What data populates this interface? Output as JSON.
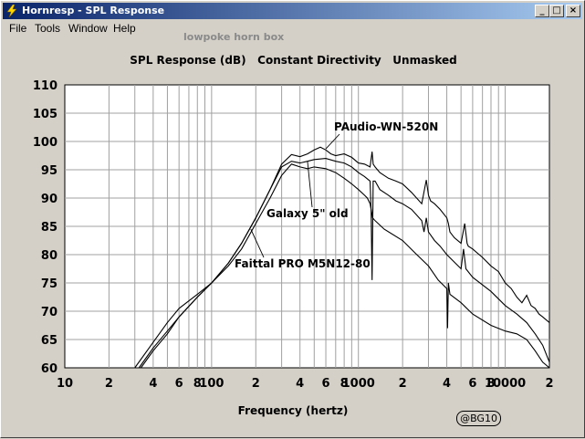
{
  "window": {
    "title": "Hornresp - SPL Response",
    "controls": {
      "minimize": "_",
      "maximize": "□",
      "close": "×"
    }
  },
  "menu": [
    "File",
    "Tools",
    "Window",
    "Help"
  ],
  "watermark": "lowpoke horn box",
  "chart_title": "SPL Response (dB)   Constant Directivity   Unmasked",
  "badge": "@BG10",
  "colors": {
    "titlebar_start": "#0a246a",
    "titlebar_end": "#a6caf0",
    "plot_bg": "#ffffff",
    "grid": "#a0a0a0",
    "curve": "#000000"
  },
  "chart_data": {
    "type": "line",
    "xscale": "log",
    "xlabel": "Frequency (hertz)",
    "ylabel": "SPL Response (dB)",
    "xlim": [
      10,
      20000
    ],
    "ylim": [
      60,
      110
    ],
    "grid": true,
    "x_ticks": [
      {
        "v": 10,
        "label": "10"
      },
      {
        "v": 20,
        "label": "2"
      },
      {
        "v": 40,
        "label": "4"
      },
      {
        "v": 60,
        "label": "6"
      },
      {
        "v": 80,
        "label": "8"
      },
      {
        "v": 100,
        "label": "100"
      },
      {
        "v": 200,
        "label": "2"
      },
      {
        "v": 400,
        "label": "4"
      },
      {
        "v": 600,
        "label": "6"
      },
      {
        "v": 800,
        "label": "8"
      },
      {
        "v": 1000,
        "label": "1000"
      },
      {
        "v": 2000,
        "label": "2"
      },
      {
        "v": 4000,
        "label": "4"
      },
      {
        "v": 6000,
        "label": "6"
      },
      {
        "v": 8000,
        "label": "8"
      },
      {
        "v": 10000,
        "label": "10000"
      },
      {
        "v": 20000,
        "label": "2"
      }
    ],
    "y_ticks": [
      60,
      65,
      70,
      75,
      80,
      85,
      90,
      95,
      100,
      105,
      110
    ],
    "series": [
      {
        "name": "PAudio-WN-520N",
        "x": [
          32,
          40,
          50,
          60,
          80,
          100,
          130,
          160,
          200,
          250,
          300,
          350,
          400,
          450,
          500,
          550,
          600,
          650,
          700,
          800,
          900,
          1000,
          1100,
          1200,
          1240,
          1260,
          1300,
          1400,
          1600,
          1800,
          2000,
          2300,
          2700,
          2900,
          3000,
          3100,
          3300,
          3600,
          4000,
          4100,
          4200,
          4500,
          5000,
          5300,
          5500,
          5600,
          6000,
          7000,
          8000,
          9000,
          10000,
          11000,
          12000,
          13000,
          14000,
          15000,
          16000,
          17000,
          18000,
          20000
        ],
        "y": [
          60,
          63.5,
          66.5,
          69,
          72.5,
          75,
          78.5,
          82,
          86.5,
          91.5,
          96,
          97.7,
          97.3,
          97.8,
          98.5,
          99,
          98.5,
          97.8,
          97.5,
          97.8,
          97.2,
          96.2,
          96,
          95.5,
          98.2,
          96,
          95.5,
          94.5,
          93.5,
          93,
          92.5,
          91,
          89,
          93.2,
          90.5,
          89.5,
          89,
          88,
          86.5,
          85.5,
          84,
          83,
          82,
          85.5,
          82,
          81.5,
          81,
          79.5,
          78,
          77,
          75,
          74,
          72.5,
          71.5,
          72.8,
          71,
          70.5,
          69.5,
          69,
          68
        ]
      },
      {
        "name": "Galaxy 5\" old",
        "x": [
          33,
          40,
          50,
          60,
          80,
          100,
          130,
          160,
          200,
          250,
          300,
          350,
          400,
          450,
          500,
          600,
          700,
          800,
          900,
          1000,
          1100,
          1200,
          1220,
          1240,
          1260,
          1300,
          1400,
          1600,
          1800,
          2000,
          2300,
          2700,
          2800,
          2900,
          3000,
          3300,
          3600,
          4000,
          5000,
          5200,
          5400,
          6000,
          8000,
          10000,
          12000,
          14000,
          16000,
          18000,
          20000
        ],
        "y": [
          60,
          63,
          66,
          69,
          72.5,
          75,
          78.5,
          82,
          86.5,
          91.5,
          95.5,
          96.5,
          96.2,
          96.5,
          96.8,
          97,
          96.5,
          96.2,
          95.5,
          94.5,
          93.8,
          93,
          88,
          75.5,
          93,
          93,
          91.5,
          90.5,
          89.5,
          89,
          88,
          86,
          84,
          86.5,
          84,
          82.5,
          81.5,
          80,
          77.5,
          81,
          77.5,
          76,
          73.5,
          71,
          69.5,
          68,
          66,
          64,
          61
        ]
      },
      {
        "name": "Faittal PRO M5N12-80",
        "x": [
          30,
          40,
          50,
          60,
          80,
          100,
          130,
          160,
          200,
          250,
          300,
          350,
          400,
          450,
          500,
          600,
          700,
          800,
          900,
          1000,
          1100,
          1150,
          1200,
          1250,
          1300,
          1500,
          2000,
          2500,
          3000,
          3500,
          4000,
          4050,
          4100,
          4200,
          5000,
          6000,
          8000,
          10000,
          12000,
          14000,
          16000,
          18000,
          20000
        ],
        "y": [
          60,
          64.5,
          68,
          70.5,
          73,
          75,
          78,
          81,
          85.5,
          90,
          94,
          96,
          95.5,
          95.2,
          95.5,
          95.2,
          94.5,
          93.5,
          92.5,
          91.5,
          90.5,
          90,
          89,
          86.5,
          86,
          84.5,
          82.5,
          80,
          78,
          75.5,
          74,
          67,
          75,
          73,
          71.5,
          69.5,
          67.5,
          66.5,
          66,
          65,
          63,
          61,
          60
        ]
      }
    ],
    "annotations": [
      {
        "text": "PAudio-WN-520N",
        "target_x": 600,
        "target_y": 98.7
      },
      {
        "text": "Galaxy 5\" old",
        "target_x": 450,
        "target_y": 96.5
      },
      {
        "text": "Faittal PRO M5N12-80",
        "target_x": 185,
        "target_y": 84.5
      }
    ]
  }
}
